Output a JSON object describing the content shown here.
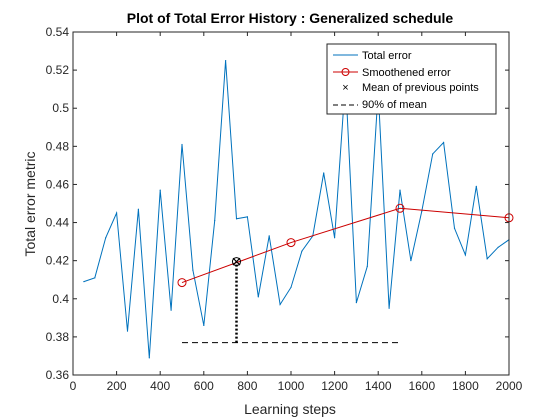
{
  "chart_data": {
    "type": "line",
    "title": "Plot of Total Error History : Generalized schedule",
    "xlabel": "Learning steps",
    "ylabel": "Total error metric",
    "xlim": [
      0,
      2000
    ],
    "ylim": [
      0.36,
      0.54
    ],
    "xticks": [
      "0",
      "200",
      "400",
      "600",
      "800",
      "1000",
      "1200",
      "1400",
      "1600",
      "1800",
      "2000"
    ],
    "yticks": [
      "0.36",
      "0.38",
      "0.4",
      "0.42",
      "0.44",
      "0.46",
      "0.48",
      "0.5",
      "0.52",
      "0.54"
    ],
    "grid": false,
    "legend_position": "top-right",
    "series": [
      {
        "name": "Total error",
        "color": "#0072bd",
        "style": "solid",
        "x": [
          50,
          100,
          150,
          200,
          250,
          300,
          350,
          400,
          450,
          500,
          550,
          600,
          650,
          700,
          750,
          800,
          850,
          900,
          950,
          1000,
          1050,
          1100,
          1150,
          1200,
          1250,
          1300,
          1350,
          1400,
          1450,
          1500,
          1550,
          1600,
          1650,
          1700,
          1750,
          1800,
          1850,
          1900,
          1950,
          2000
        ],
        "y": [
          0.409,
          0.411,
          0.432,
          0.445,
          0.383,
          0.447,
          0.369,
          0.457,
          0.394,
          0.481,
          0.415,
          0.386,
          0.441,
          0.525,
          0.442,
          0.443,
          0.401,
          0.433,
          0.397,
          0.406,
          0.425,
          0.433,
          0.466,
          0.432,
          0.515,
          0.398,
          0.417,
          0.509,
          0.395,
          0.457,
          0.42,
          0.446,
          0.476,
          0.482,
          0.437,
          0.423,
          0.459,
          0.421,
          0.427,
          0.431
        ]
      },
      {
        "name": "Smoothened error",
        "color": "#cc0000",
        "style": "solid-circle-markers",
        "x": [
          500,
          1000,
          1500,
          2000
        ],
        "y": [
          0.4085,
          0.4295,
          0.4475,
          0.4425
        ]
      },
      {
        "name": "Mean of previous points",
        "color": "#000000",
        "style": "x-marker",
        "x": [
          750
        ],
        "y": [
          0.4195
        ]
      },
      {
        "name": "90% of mean",
        "color": "#000000",
        "style": "dashed",
        "x": [
          500,
          1500
        ],
        "y": [
          0.377,
          0.377
        ]
      }
    ],
    "mean_connector": {
      "x": 750,
      "y_from": 0.377,
      "y_to": 0.4195,
      "style": "dotted"
    }
  }
}
